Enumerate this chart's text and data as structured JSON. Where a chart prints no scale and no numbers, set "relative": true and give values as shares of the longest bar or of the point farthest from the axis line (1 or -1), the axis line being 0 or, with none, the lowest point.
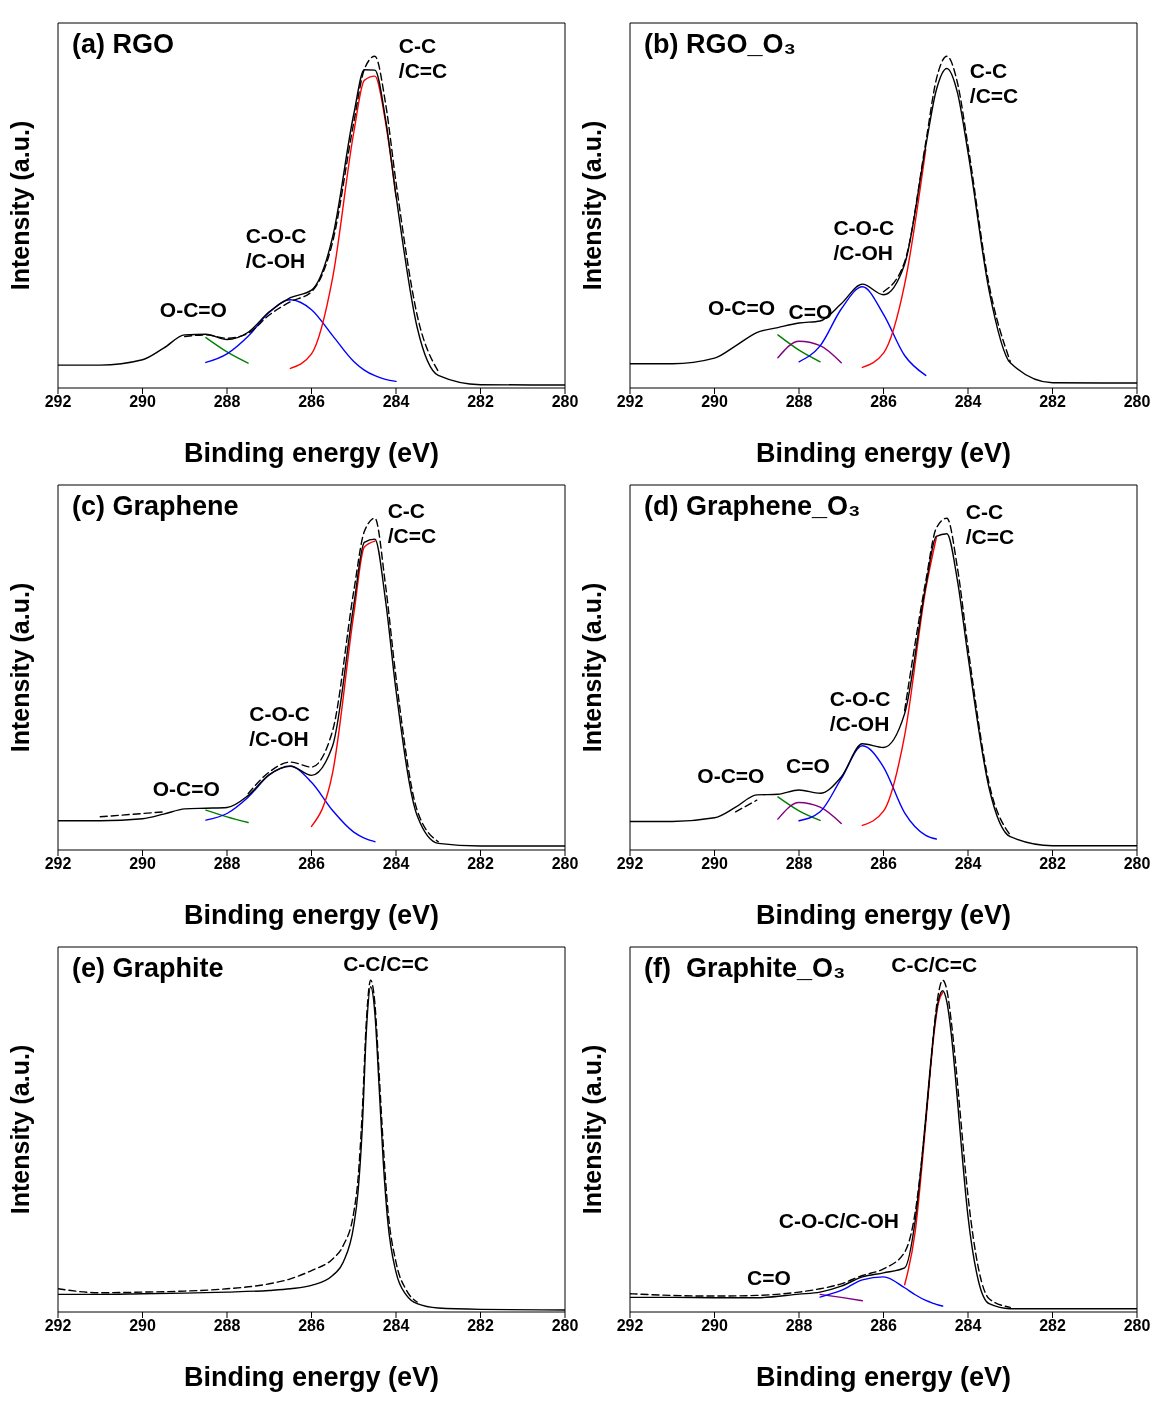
{
  "chart_data": [
    {
      "type": "line",
      "title": "(a) RGO",
      "xlabel": "Binding energy (eV)",
      "ylabel": "Intensity (a.u.)",
      "relative": true,
      "tick_labels": "x",
      "marker": "none",
      "xlim": [
        292,
        280
      ],
      "xticks": [
        292,
        290,
        288,
        286,
        284,
        282,
        280
      ],
      "x": [
        292,
        291,
        290,
        289.5,
        289,
        288.5,
        288,
        287.5,
        287,
        286.5,
        286,
        285.5,
        285,
        284.75,
        284.5,
        284.25,
        284,
        283.5,
        283,
        282,
        280
      ],
      "series": [
        {
          "color": "#008000",
          "line_style": "solid",
          "values": [
            null,
            null,
            null,
            null,
            null,
            0.152,
            0.109,
            0.075,
            null,
            null,
            null,
            null,
            null,
            null,
            null,
            null,
            null,
            null,
            null,
            null,
            null
          ]
        },
        {
          "color": "#0000ff",
          "line_style": "solid",
          "values": [
            null,
            null,
            null,
            null,
            null,
            0.077,
            0.103,
            0.156,
            0.228,
            0.266,
            0.236,
            0.158,
            0.08,
            0.054,
            0.037,
            0.026,
            0.02,
            null,
            null,
            null,
            null
          ]
        },
        {
          "color": "#ff0000",
          "line_style": "solid",
          "values": [
            null,
            null,
            null,
            null,
            null,
            null,
            null,
            null,
            null,
            0.059,
            0.103,
            0.332,
            0.77,
            0.927,
            0.94,
            0.803,
            0.576,
            null,
            null,
            null,
            null
          ]
        },
        {
          "color": "#000000",
          "line_style": "solid",
          "values": [
            0.069,
            0.069,
            0.085,
            0.12,
            0.16,
            0.162,
            0.146,
            0.168,
            0.23,
            0.272,
            0.295,
            0.455,
            0.825,
            0.959,
            0.958,
            0.812,
            0.58,
            0.183,
            0.038,
            0.01,
            0.009
          ]
        },
        {
          "color": "#000000",
          "line_style": "dashed",
          "values": [
            null,
            null,
            null,
            null,
            0.155,
            0.16,
            0.15,
            0.165,
            0.22,
            0.26,
            0.29,
            0.44,
            0.8,
            0.96,
            1.0,
            0.86,
            0.62,
            0.22,
            0.05,
            null,
            null
          ]
        }
      ],
      "annotations": [
        "C-C\n/C=C",
        "C-O-C\n/C-OH",
        "O-C=O"
      ]
    },
    {
      "type": "line",
      "title": "(b) RGO_O₃",
      "xlabel": "Binding energy (eV)",
      "ylabel": "Intensity (a.u.)",
      "relative": true,
      "tick_labels": "x",
      "marker": "none",
      "xlim": [
        292,
        280
      ],
      "xticks": [
        292,
        290,
        288,
        286,
        284,
        282,
        280
      ],
      "x": [
        292,
        291,
        290,
        289.5,
        289,
        288.5,
        288,
        287.5,
        287,
        286.5,
        286,
        285.5,
        285,
        284.75,
        284.5,
        284.25,
        284,
        283.5,
        283,
        282,
        280
      ],
      "series": [
        {
          "color": "#008000",
          "line_style": "solid",
          "values": [
            null,
            null,
            null,
            null,
            null,
            0.16,
            0.114,
            0.079,
            null,
            null,
            null,
            null,
            null,
            null,
            null,
            null,
            null,
            null,
            null,
            null,
            null
          ]
        },
        {
          "color": "#800080",
          "line_style": "solid",
          "values": [
            null,
            null,
            null,
            null,
            null,
            0.091,
            0.141,
            0.128,
            0.076,
            null,
            null,
            null,
            null,
            null,
            null,
            null,
            null,
            null,
            null,
            null,
            null
          ]
        },
        {
          "color": "#0000ff",
          "line_style": "solid",
          "values": [
            null,
            null,
            null,
            null,
            null,
            null,
            0.079,
            0.127,
            0.238,
            0.305,
            0.222,
            0.098,
            0.038,
            null,
            null,
            null,
            null,
            null,
            null,
            null,
            null
          ]
        },
        {
          "color": "#ff0000",
          "line_style": "solid",
          "values": [
            null,
            null,
            null,
            null,
            null,
            null,
            null,
            null,
            null,
            0.062,
            0.105,
            0.312,
            0.719,
            null,
            null,
            null,
            null,
            null,
            null,
            null,
            null
          ]
        },
        {
          "color": "#000000",
          "line_style": "solid",
          "values": [
            0.073,
            0.073,
            0.09,
            0.127,
            0.167,
            0.182,
            0.196,
            0.202,
            0.254,
            0.313,
            0.281,
            0.373,
            0.729,
            0.898,
            0.963,
            0.89,
            0.71,
            0.293,
            0.076,
            0.016,
            0.015
          ]
        },
        {
          "color": "#000000",
          "line_style": "dashed",
          "values": [
            null,
            null,
            null,
            null,
            null,
            null,
            null,
            null,
            null,
            null,
            0.29,
            0.38,
            0.74,
            0.93,
            1.0,
            0.92,
            0.73,
            0.31,
            0.08,
            null,
            null
          ]
        }
      ],
      "annotations": [
        "C-C\n/C=C",
        "C-O-C\n/C-OH",
        "O-C=O",
        "C=O"
      ]
    },
    {
      "type": "line",
      "title": "(c) Graphene",
      "xlabel": "Binding energy (eV)",
      "ylabel": "Intensity (a.u.)",
      "relative": true,
      "tick_labels": "x",
      "marker": "none",
      "xlim": [
        292,
        280
      ],
      "xticks": [
        292,
        290,
        288,
        286,
        284,
        282,
        280
      ],
      "x": [
        292,
        291,
        290,
        289.5,
        289,
        288.5,
        288,
        287.5,
        287,
        286.5,
        286,
        285.5,
        285,
        284.75,
        284.5,
        284.25,
        284,
        283.5,
        283,
        282,
        280
      ],
      "series": [
        {
          "color": "#008000",
          "line_style": "solid",
          "values": [
            null,
            null,
            null,
            null,
            null,
            0.12,
            0.1,
            0.083,
            null,
            null,
            null,
            null,
            null,
            null,
            null,
            null,
            null,
            null,
            null,
            null,
            null
          ]
        },
        {
          "color": "#0000ff",
          "line_style": "solid",
          "values": [
            null,
            null,
            null,
            null,
            null,
            0.09,
            0.11,
            0.159,
            0.226,
            0.252,
            0.204,
            0.119,
            0.054,
            0.036,
            0.025,
            null,
            null,
            null,
            null,
            null,
            null
          ]
        },
        {
          "color": "#ff0000",
          "line_style": "solid",
          "values": [
            null,
            null,
            null,
            null,
            null,
            null,
            null,
            null,
            null,
            null,
            0.071,
            0.233,
            0.71,
            0.913,
            0.931,
            null,
            null,
            null,
            null,
            null,
            null
          ]
        },
        {
          "color": "#000000",
          "line_style": "solid",
          "values": [
            0.088,
            0.088,
            0.094,
            0.108,
            0.124,
            0.126,
            0.128,
            0.164,
            0.227,
            0.253,
            0.225,
            0.314,
            0.738,
            0.927,
            0.937,
            0.754,
            0.481,
            0.104,
            0.02,
            0.012,
            0.012
          ]
        },
        {
          "color": "#000000",
          "line_style": "dashed",
          "values": [
            null,
            0.1,
            0.11,
            0.115,
            null,
            null,
            null,
            0.17,
            0.235,
            0.265,
            0.25,
            0.36,
            0.78,
            0.96,
            1.0,
            0.8,
            0.52,
            0.12,
            0.025,
            null,
            null
          ]
        }
      ],
      "annotations": [
        "C-C\n/C=C",
        "C-O-C\n/C-OH",
        "O-C=O"
      ]
    },
    {
      "type": "line",
      "title": "(d) Graphene_O₃",
      "xlabel": "Binding energy (eV)",
      "ylabel": "Intensity (a.u.)",
      "relative": true,
      "tick_labels": "x",
      "marker": "none",
      "xlim": [
        292,
        280
      ],
      "xticks": [
        292,
        290,
        288,
        286,
        284,
        282,
        280
      ],
      "x": [
        292,
        291,
        290,
        289.5,
        289,
        288.5,
        288,
        287.5,
        287,
        286.5,
        286,
        285.5,
        285,
        284.75,
        284.5,
        284.25,
        284,
        283.5,
        283,
        282,
        280
      ],
      "series": [
        {
          "color": "#008000",
          "line_style": "solid",
          "values": [
            null,
            null,
            null,
            null,
            null,
            0.16,
            0.118,
            0.089,
            null,
            null,
            null,
            null,
            null,
            null,
            null,
            null,
            null,
            null,
            null,
            null,
            null
          ]
        },
        {
          "color": "#800080",
          "line_style": "solid",
          "values": [
            null,
            null,
            null,
            null,
            null,
            0.093,
            0.143,
            0.129,
            0.08,
            null,
            null,
            null,
            null,
            null,
            null,
            null,
            null,
            null,
            null,
            null,
            null
          ]
        },
        {
          "color": "#0000ff",
          "line_style": "solid",
          "values": [
            null,
            null,
            null,
            null,
            null,
            null,
            0.088,
            0.115,
            0.215,
            0.314,
            0.25,
            0.112,
            0.044,
            0.033,
            null,
            null,
            null,
            null,
            null,
            null,
            null
          ]
        },
        {
          "color": "#ff0000",
          "line_style": "solid",
          "values": [
            null,
            null,
            null,
            null,
            null,
            null,
            null,
            null,
            null,
            0.074,
            0.117,
            0.345,
            0.786,
            0.941,
            null,
            null,
            null,
            null,
            null,
            null,
            null
          ]
        },
        {
          "color": "#000000",
          "line_style": "solid",
          "values": [
            0.086,
            0.086,
            0.097,
            0.129,
            0.166,
            0.168,
            0.181,
            0.171,
            0.22,
            0.32,
            0.309,
            0.411,
            0.796,
            0.945,
            0.953,
            0.812,
            0.584,
            0.186,
            0.04,
            0.013,
            0.013
          ]
        },
        {
          "color": "#000000",
          "line_style": "dashed",
          "values": [
            null,
            null,
            null,
            0.115,
            0.15,
            null,
            null,
            null,
            null,
            null,
            null,
            0.42,
            0.81,
            0.97,
            1.0,
            0.85,
            0.61,
            0.2,
            0.045,
            null,
            null
          ]
        }
      ],
      "annotations": [
        "C-C\n/C=C",
        "C-O-C\n/C-OH",
        "O-C=O",
        "C=O"
      ]
    },
    {
      "type": "line",
      "title": "(e) Graphite",
      "xlabel": "Binding energy (eV)",
      "ylabel": "Intensity (a.u.)",
      "relative": true,
      "tick_labels": "x",
      "marker": "none",
      "xlim": [
        292,
        280
      ],
      "xticks": [
        292,
        290,
        288,
        286,
        284,
        282,
        280
      ],
      "x": [
        292,
        291,
        290,
        289,
        288,
        287,
        286.5,
        286,
        285.5,
        285.25,
        285,
        284.9,
        284.8,
        284.7,
        284.6,
        284.5,
        284.4,
        284.3,
        284.2,
        284,
        283.75,
        283.5,
        283,
        282,
        280
      ],
      "series": [
        {
          "color": "#000000",
          "line_style": "solid",
          "values": [
            0.053,
            0.053,
            0.055,
            0.057,
            0.06,
            0.065,
            0.07,
            0.08,
            0.11,
            0.15,
            0.26,
            0.36,
            0.55,
            0.85,
            0.98,
            0.9,
            0.68,
            0.45,
            0.28,
            0.12,
            0.05,
            0.025,
            0.012,
            0.008,
            0.006
          ]
        },
        {
          "color": "#000000",
          "line_style": "dashed",
          "values": [
            0.07,
            0.058,
            0.06,
            0.063,
            0.07,
            0.085,
            0.1,
            0.125,
            0.16,
            0.2,
            0.3,
            0.4,
            0.6,
            0.88,
            1.0,
            0.93,
            0.72,
            0.5,
            0.32,
            0.15,
            0.065,
            0.03,
            null,
            null,
            null
          ]
        }
      ],
      "annotations": [
        "C-C/C=C"
      ]
    },
    {
      "type": "line",
      "title": "(f)  Graphite_O₃",
      "xlabel": "Binding energy (eV)",
      "ylabel": "Intensity (a.u.)",
      "relative": true,
      "tick_labels": "x",
      "marker": "none",
      "xlim": [
        292,
        280
      ],
      "xticks": [
        292,
        290,
        288,
        286,
        284,
        282,
        280
      ],
      "x": [
        292,
        291,
        290,
        289,
        288,
        287.5,
        287,
        286.5,
        286,
        285.5,
        285.25,
        285,
        284.9,
        284.8,
        284.7,
        284.6,
        284.5,
        284.4,
        284.3,
        284.2,
        284,
        283.75,
        283.5,
        283,
        282,
        280
      ],
      "series": [
        {
          "color": "#800080",
          "line_style": "solid",
          "values": [
            null,
            null,
            null,
            null,
            null,
            0.053,
            0.044,
            0.034,
            null,
            null,
            null,
            null,
            null,
            null,
            null,
            null,
            null,
            null,
            null,
            null,
            null,
            null,
            null,
            null,
            null,
            null
          ]
        },
        {
          "color": "#0000ff",
          "line_style": "solid",
          "values": [
            null,
            null,
            null,
            null,
            null,
            0.045,
            0.065,
            0.097,
            0.106,
            0.073,
            0.052,
            0.035,
            0.03,
            0.025,
            0.021,
            0.018,
            null,
            null,
            null,
            null,
            null,
            null,
            null,
            null,
            null,
            null
          ]
        },
        {
          "color": "#ff0000",
          "line_style": "solid",
          "values": [
            null,
            null,
            null,
            null,
            null,
            null,
            null,
            null,
            null,
            0.082,
            0.242,
            0.568,
            0.714,
            0.843,
            0.932,
            0.963,
            null,
            null,
            null,
            null,
            null,
            null,
            null,
            null,
            null,
            null
          ]
        },
        {
          "color": "#000000",
          "line_style": "solid",
          "values": [
            0.044,
            0.044,
            0.043,
            0.043,
            0.054,
            0.06,
            0.078,
            0.106,
            0.118,
            0.133,
            0.275,
            0.586,
            0.728,
            0.853,
            0.939,
            0.968,
            0.934,
            0.842,
            0.711,
            0.563,
            0.288,
            0.092,
            0.025,
            0.01,
            0.01,
            0.01
          ]
        },
        {
          "color": "#000000",
          "line_style": "dashed",
          "values": [
            0.055,
            0.05,
            0.048,
            0.05,
            0.06,
            0.07,
            0.085,
            0.11,
            0.13,
            0.18,
            0.3,
            0.58,
            0.72,
            0.86,
            0.96,
            1.0,
            0.97,
            0.88,
            0.76,
            0.62,
            0.35,
            0.13,
            0.04,
            0.014,
            null,
            null
          ]
        }
      ],
      "annotations": [
        "C-C/C=C",
        "C-O-C/C-OH",
        "C=O"
      ]
    }
  ]
}
